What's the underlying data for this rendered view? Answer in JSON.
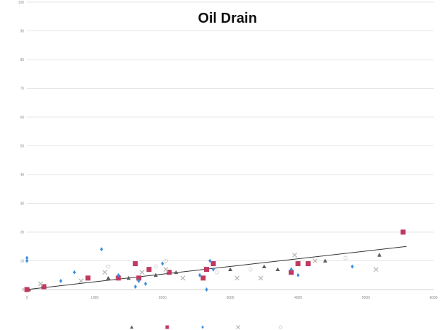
{
  "chart_data": {
    "type": "scatter",
    "title": "Oil Drain",
    "xlabel": "",
    "ylabel": "",
    "xlim": [
      0,
      6000
    ],
    "ylim": [
      0,
      100
    ],
    "x_ticks": [
      0,
      1000,
      2000,
      3000,
      4000,
      5000,
      6000
    ],
    "y_ticks": [
      0,
      10,
      20,
      30,
      40,
      50,
      60,
      70,
      80,
      90,
      100
    ],
    "grid": "horizontal",
    "legend_position": "bottom",
    "colors": {
      "series_a": "#5c5c5c",
      "series_b": "#c0395f",
      "series_c": "#3a8ee0",
      "series_d": "#b5b5b5",
      "series_e": "#d3d3d3",
      "trendline": "#333333",
      "gridline": "#e4e4e4"
    },
    "series": [
      {
        "marker": "triangle",
        "color": "#5c5c5c",
        "points": [
          [
            30,
            0
          ],
          [
            250,
            1
          ],
          [
            1200,
            4
          ],
          [
            1500,
            4
          ],
          [
            1900,
            5
          ],
          [
            2200,
            6
          ],
          [
            3000,
            7
          ],
          [
            3500,
            8
          ],
          [
            3700,
            7
          ],
          [
            4000,
            9
          ],
          [
            4400,
            10
          ],
          [
            5200,
            12
          ]
        ]
      },
      {
        "marker": "square",
        "color": "#c0395f",
        "points": [
          [
            0,
            0
          ],
          [
            250,
            1
          ],
          [
            900,
            4
          ],
          [
            1350,
            4
          ],
          [
            1600,
            9
          ],
          [
            1650,
            4
          ],
          [
            1800,
            7
          ],
          [
            2100,
            6
          ],
          [
            2600,
            4
          ],
          [
            2650,
            7
          ],
          [
            2750,
            9
          ],
          [
            3900,
            6
          ],
          [
            4000,
            9
          ],
          [
            4150,
            9
          ],
          [
            5550,
            20
          ]
        ]
      },
      {
        "marker": "diamond",
        "color": "#3a8ee0",
        "points": [
          [
            0,
            11
          ],
          [
            0,
            10
          ],
          [
            500,
            3
          ],
          [
            700,
            6
          ],
          [
            1100,
            14
          ],
          [
            1350,
            5
          ],
          [
            1600,
            1
          ],
          [
            1650,
            3
          ],
          [
            1750,
            2
          ],
          [
            2000,
            9
          ],
          [
            2550,
            5
          ],
          [
            2650,
            0
          ],
          [
            2700,
            10
          ],
          [
            2750,
            7
          ],
          [
            3900,
            7
          ],
          [
            4000,
            5
          ],
          [
            4800,
            8
          ]
        ]
      },
      {
        "marker": "cross",
        "color": "#b5b5b5",
        "points": [
          [
            200,
            2
          ],
          [
            800,
            3
          ],
          [
            1150,
            6
          ],
          [
            1700,
            6
          ],
          [
            2050,
            7
          ],
          [
            2300,
            4
          ],
          [
            3100,
            4
          ],
          [
            3450,
            4
          ],
          [
            3950,
            12
          ],
          [
            4250,
            10
          ],
          [
            5150,
            7
          ]
        ]
      },
      {
        "marker": "circle",
        "color": "#d3d3d3",
        "points": [
          [
            1200,
            8
          ],
          [
            1900,
            8
          ],
          [
            2050,
            10
          ],
          [
            2800,
            6
          ],
          [
            3300,
            7
          ],
          [
            4700,
            11
          ]
        ]
      }
    ],
    "trendline": {
      "x": [
        0,
        5600
      ],
      "y": [
        0,
        15
      ]
    },
    "legend": [
      "",
      "",
      "",
      "",
      ""
    ]
  }
}
